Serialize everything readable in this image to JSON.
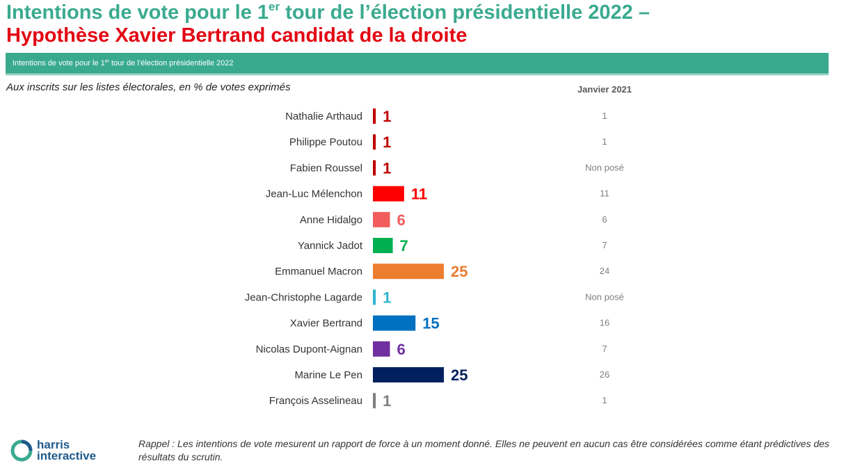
{
  "header": {
    "title_line1": "Intentions de vote pour le 1",
    "title_line1_sup": "er",
    "title_line1_end": " tour de l’élection présidentielle 2022 –",
    "title_line2": "Hypothèse Xavier Bertrand candidat de la droite"
  },
  "banner": {
    "text_start": "Intentions de vote pour le 1",
    "text_sup": "er",
    "text_end": " tour de l’élection présidentielle 2022"
  },
  "subtitle": "Aux inscrits sur les listes électorales, en % de votes exprimés",
  "comparison_header": "Janvier 2021",
  "chart_data": {
    "type": "bar",
    "orientation": "horizontal",
    "categories": [
      "Nathalie Arthaud",
      "Philippe Poutou",
      "Fabien Roussel",
      "Jean-Luc Mélenchon",
      "Anne Hidalgo",
      "Yannick Jadot",
      "Emmanuel Macron",
      "Jean-Christophe Lagarde",
      "Xavier Bertrand",
      "Nicolas Dupont-Aignan",
      "Marine Le Pen",
      "François Asselineau"
    ],
    "values": [
      1,
      1,
      1,
      11,
      6,
      7,
      25,
      1,
      15,
      6,
      25,
      1
    ],
    "labels": [
      "1",
      "1",
      "1",
      "11",
      "6",
      "7",
      "25",
      "1",
      "15",
      "6",
      "25",
      "1"
    ],
    "colors": [
      "#c00000",
      "#c00000",
      "#c00000",
      "#ff0000",
      "#f25c5c",
      "#00b050",
      "#ed7d31",
      "#31b6d0",
      "#0070c0",
      "#7030a0",
      "#002060",
      "#7f7f7f"
    ],
    "comparison": {
      "name": "Janvier 2021",
      "values": [
        "1",
        "1",
        "Non posé",
        "11",
        "6",
        "7",
        "24",
        "Non posé",
        "16",
        "7",
        "26",
        "1"
      ]
    },
    "xlim": [
      0,
      25
    ],
    "grid": false,
    "legend": "none"
  },
  "logo": {
    "line1": "harris",
    "line2": "interactive"
  },
  "footnote": "Rappel : Les intentions de vote mesurent un rapport de force à un moment donné. Elles ne peuvent en aucun cas être considérées comme étant prédictives des résultats du scrutin."
}
